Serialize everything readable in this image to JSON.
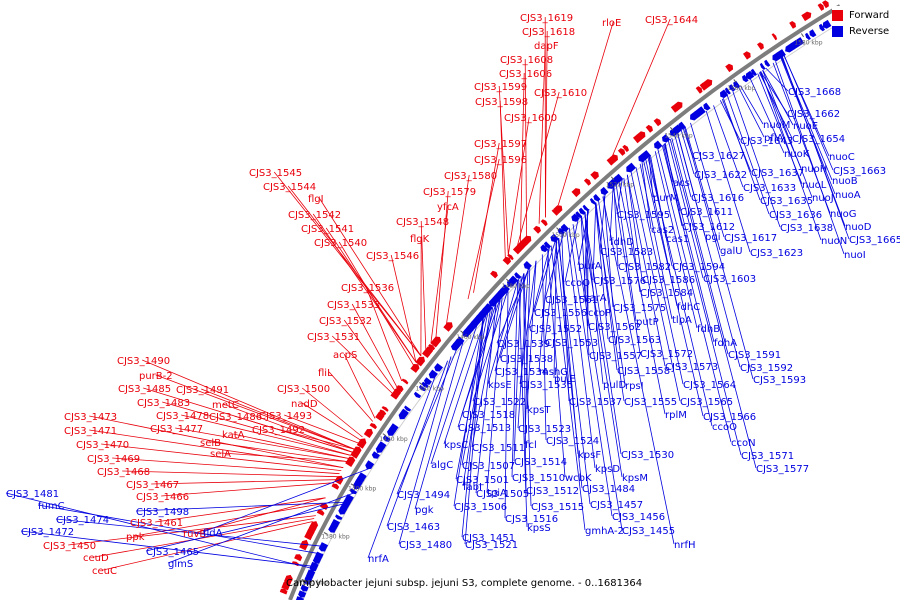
{
  "caption": "Campylobacter jejuni subsp. jejuni S3, complete genome. - 0..1681364",
  "legend": {
    "forward": "Forward",
    "reverse": "Reverse"
  },
  "colors": {
    "forward": "#e8000b",
    "reverse": "#0000e0",
    "backbone": "#808080"
  },
  "ticks": [
    "1360 kbp",
    "1380 kbp",
    "1400 kbp",
    "1420 kbp",
    "1440 kbp",
    "1460 kbp",
    "1480 kbp",
    "1500 kbp",
    "1520 kbp",
    "1540 kbp",
    "1560 kbp",
    "1580 kbp"
  ],
  "forward_labels": [
    "CJS3_1619",
    "CJS3_1618",
    "dapF",
    "CJS3_1608",
    "CJS3_1606",
    "CJS3_1599",
    "CJS3_1598",
    "CJS3_1600",
    "CJS3_1597",
    "CJS3_1596",
    "CJS3_1580",
    "CJS3_1579",
    "CJS3_1545",
    "CJS3_1544",
    "flgI",
    "CJS3_1542",
    "CJS3_1541",
    "CJS3_1540",
    "CJS3_1546",
    "yfcA",
    "CJS3_1548",
    "flgK",
    "CJS3_1610",
    "rloE",
    "CJS3_1644",
    "CJS3_1536",
    "CJS3_1533",
    "CJS3_1532",
    "CJS3_1531",
    "acpS",
    "fliL",
    "CJS3_1500",
    "nadD",
    "CJS3_1490",
    "purB-2",
    "CJS3_1485",
    "CJS3_1491",
    "CJS3_1483",
    "metC",
    "CJS3_1478",
    "CJS3_1486",
    "CJS3_1493",
    "CJS3_1473",
    "CJS3_1477",
    "katA",
    "CJS3_1492",
    "CJS3_1471",
    "selB",
    "CJS3_1470",
    "selA",
    "CJS3_1469",
    "CJS3_1468",
    "CJS3_1467",
    "CJS3_1466",
    "CJS3_1461",
    "ruvB",
    "ppk",
    "CJS3_1450",
    "ceuD",
    "ceuC"
  ],
  "reverse_labels": [
    "CJS3_1668",
    "CJS3_1662",
    "nuoM",
    "nuoE",
    "pflA",
    "CJS3_1654",
    "CJS3_1643",
    "nuoK",
    "nuoC",
    "CJS3_1627",
    "nuoH",
    "CJS3_1663",
    "CJS3_1637",
    "CJS3_1622",
    "nuoL",
    "nuoB",
    "CJS3_1633",
    "nuoJ",
    "nuoA",
    "acs",
    "CJS3_1635",
    "purM",
    "CJS3_1616",
    "CJS3_1636",
    "nuoG",
    "CJS3_1611",
    "CJS3_1595",
    "CJS3_1638",
    "nuoD",
    "cas2",
    "CJS3_1612",
    "CJS3_1617",
    "nuoN",
    "CJS3_1665",
    "cas1",
    "pgi",
    "fdhD",
    "galU",
    "CJS3_1623",
    "nuoI",
    "CJS3_1583",
    "purA",
    "CJS3_1582",
    "CJS3_1594",
    "ccoQ",
    "CJS3_1576",
    "CJS3_1586",
    "CJS3_1603",
    "CJS3_1561",
    "carA",
    "CJS3_1584",
    "CJS3_1556",
    "ccoP",
    "CJS3_1575",
    "fdhC",
    "CJS3_1552",
    "CJS3_1562",
    "putP",
    "tlpA",
    "CJS3_1539",
    "CJS3_1553",
    "CJS3_1563",
    "fdhB",
    "CJS3_1538",
    "CJS3_1557",
    "CJS3_1572",
    "fdhA",
    "mshG",
    "CJS3_1558",
    "CJS3_1573",
    "CJS3_1591",
    "CJS3_1534",
    "pulE",
    "kpsE",
    "CJS3_1535",
    "pulD",
    "rpsI",
    "CJS3_1564",
    "CJS3_1592",
    "CJS3_1593",
    "CJS3_1522",
    "CJS3_1537",
    "CJS3_1555",
    "kpsT",
    "CJS3_1565",
    "CJS3_1518",
    "rplM",
    "CJS3_1566",
    "CJS3_1513",
    "CJS3_1523",
    "ccoO",
    "CJS3_1524",
    "ccoN",
    "kpsC",
    "CJS3_1511",
    "fcl",
    "kpsF",
    "CJS3_1530",
    "CJS3_1571",
    "algC",
    "CJS3_1507",
    "CJS3_1514",
    "kpsD",
    "CJS3_1577",
    "CJS3_1501",
    "CJS3_1510",
    "wcbK",
    "kpsM",
    "fabI",
    "tpiA",
    "CJS3_1505",
    "CJS3_1512",
    "CJS3_1484",
    "CJS3_1494",
    "CJS3_1506",
    "CJS3_1515",
    "CJS3_1457",
    "CJS3_1481",
    "pgk",
    "CJS3_1516",
    "CJS3_1456",
    "fumC",
    "CJS3_1498",
    "kpsS",
    "gmhA-2",
    "CJS3_1455",
    "CJS3_1474",
    "CJS3_1463",
    "fldA",
    "CJS3_1451",
    "CJS3_1472",
    "CJS3_1480",
    "CJS3_1521",
    "nrfH",
    "CJS3_1465",
    "nrfA",
    "glmS"
  ]
}
